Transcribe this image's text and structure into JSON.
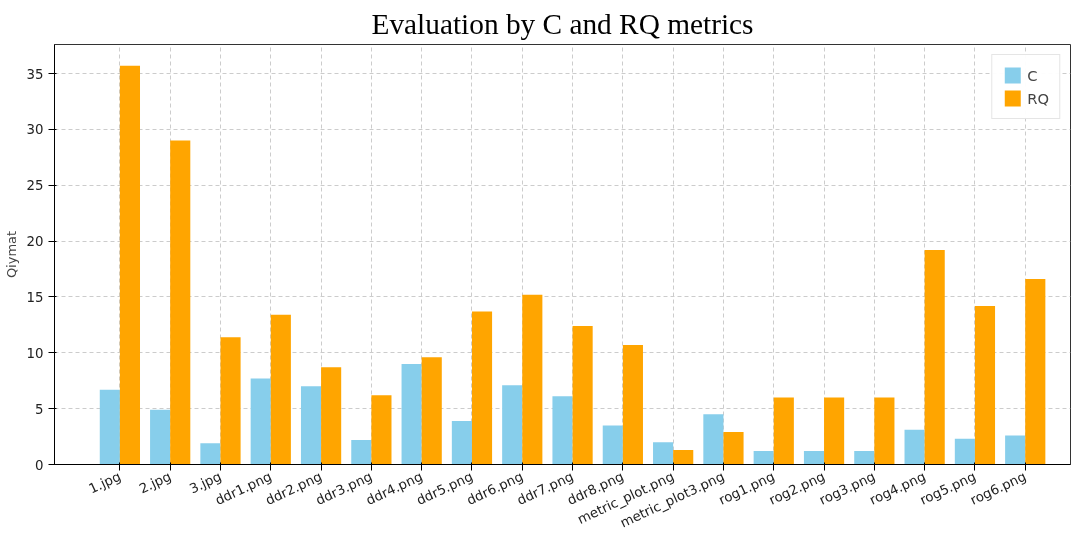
{
  "chart_data": {
    "type": "bar",
    "title": "Evaluation by C and RQ metrics",
    "ylabel": "Qiymat",
    "categories": [
      "1.jpg",
      "2.jpg",
      "3.jpg",
      "ddr1.png",
      "ddr2.png",
      "ddr3.png",
      "ddr4.png",
      "ddr5.png",
      "ddr6.png",
      "ddr7.png",
      "ddr8.png",
      "metric_plot.png",
      "metric_plot3.png",
      "rog1.png",
      "rog2.png",
      "rog3.png",
      "rog4.png",
      "rog5.png",
      "rog6.png"
    ],
    "series": [
      {
        "name": "C",
        "color": "#87ceeb",
        "values": [
          6.7,
          4.9,
          1.9,
          7.7,
          7.0,
          2.2,
          9.0,
          3.9,
          7.1,
          6.1,
          3.5,
          2.0,
          4.5,
          1.2,
          1.2,
          1.2,
          3.1,
          2.3,
          2.6
        ]
      },
      {
        "name": "RQ",
        "color": "#ffa500",
        "values": [
          35.7,
          29.0,
          11.4,
          13.4,
          8.7,
          6.2,
          9.6,
          13.7,
          15.2,
          12.4,
          10.7,
          1.3,
          2.9,
          6.0,
          6.0,
          6.0,
          19.2,
          14.2,
          16.6
        ]
      }
    ],
    "ylim": [
      0,
      37.6
    ],
    "yticks": [
      0,
      5,
      10,
      15,
      20,
      25,
      30,
      35
    ],
    "grid": true,
    "legend": "top right"
  }
}
